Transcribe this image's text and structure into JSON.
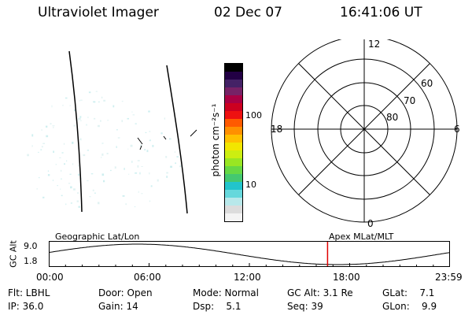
{
  "header": {
    "title": "Ultraviolet Imager",
    "date": "02 Dec 07",
    "time": "16:41:06 UT"
  },
  "colorbar": {
    "label": "photon cm⁻²s⁻¹",
    "ticks": [
      {
        "label": "100",
        "value": 100
      },
      {
        "label": "10",
        "value": 10
      }
    ],
    "colors": [
      "#f4f4f4",
      "#dcdcdc",
      "#b8e8ea",
      "#66d8dc",
      "#22c4cc",
      "#44c870",
      "#66d844",
      "#99e622",
      "#ccee11",
      "#f2e600",
      "#ffc000",
      "#ff9000",
      "#ff5a00",
      "#ee1111",
      "#cc0020",
      "#aa0044",
      "#772266",
      "#442266",
      "#220044",
      "#000000"
    ]
  },
  "polar": {
    "mlt_labels": {
      "top": "12",
      "right": "6",
      "bottom": "0",
      "left": "18"
    },
    "lat_labels": [
      "60",
      "70",
      "80"
    ]
  },
  "orbit": {
    "ylabel": "GC Alt",
    "ymax": "9.0",
    "ymin": "1.8",
    "left_caption": "Geographic Lat/Lon",
    "right_caption": "Apex MLat/MLT",
    "current_time_hours": 16.68,
    "time_ticks": [
      "00:00",
      "06:00",
      "12:00",
      "18:00",
      "23:59"
    ]
  },
  "info": {
    "filter": "Flt: LBHL",
    "ip": "IP: 36.0",
    "door": "Door: Open",
    "gain": "Gain: 14",
    "mode": "Mode: Normal",
    "dsp": "Dsp:    5.1",
    "gc_alt": "GC Alt: 3.1 Re",
    "seq": "Seq: 39",
    "glat": "GLat:    7.1",
    "glon": "GLon:    9.9"
  }
}
